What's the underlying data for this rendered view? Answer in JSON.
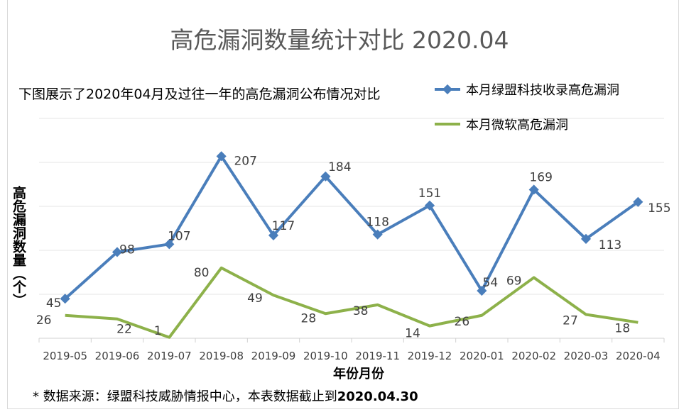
{
  "chart_data": {
    "type": "line",
    "title": "高危漏洞数量统计对比 2020.04",
    "subtitle": "下图展示了2020年04月及过往一年的高危漏洞公布情况对比",
    "xlabel": "年份月份",
    "ylabel": "高危漏洞数量（个）",
    "categories": [
      "2019-05",
      "2019-06",
      "2019-07",
      "2019-08",
      "2019-09",
      "2019-10",
      "2019-11",
      "2019-12",
      "2020-01",
      "2020-02",
      "2020-03",
      "2020-04"
    ],
    "ylim": [
      0,
      250
    ],
    "grid": true,
    "legend_position": "top-right",
    "series": [
      {
        "name": "本月绿盟科技收录高危漏洞",
        "color": "#4a7ebb",
        "marker": "diamond",
        "values": [
          45,
          98,
          107,
          207,
          117,
          184,
          118,
          151,
          54,
          169,
          113,
          155
        ]
      },
      {
        "name": "本月微软高危漏洞",
        "color": "#8db14a",
        "marker": "none",
        "values": [
          26,
          22,
          1,
          80,
          49,
          28,
          38,
          14,
          26,
          69,
          27,
          18
        ]
      }
    ]
  },
  "footnote": {
    "prefix": "* 数据来源：绿盟科技威胁情报中心，本表数据截止到",
    "date": "2020.04.30"
  }
}
